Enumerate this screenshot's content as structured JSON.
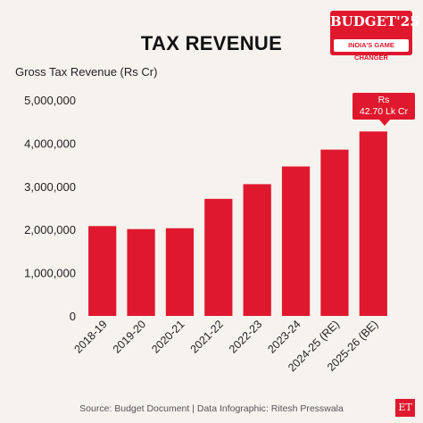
{
  "title": "TAX REVENUE",
  "logo": {
    "word": "BUDGET'25",
    "tagline": "INDIA'S GAME CHANGER"
  },
  "footer": {
    "source": "Source: Budget Document | Data Infographic: Ritesh Presswala",
    "badge": "ET"
  },
  "callout": {
    "line1": "Rs",
    "line2": "42.70 Lk Cr"
  },
  "colors": {
    "bar": "#e0182d",
    "background": "#f6f2ee"
  },
  "chart_data": {
    "type": "bar",
    "title": "TAX REVENUE",
    "xlabel": "",
    "ylabel": "Gross Tax Revenue (Rs Cr)",
    "categories": [
      "2018-19",
      "2019-20",
      "2020-21",
      "2021-22",
      "2022-23",
      "2023-24",
      "2024-25 (RE)",
      "2025-26 (BE)"
    ],
    "values": [
      2080000,
      2010000,
      2030000,
      2710000,
      3050000,
      3460000,
      3850000,
      4270000
    ],
    "ylim": [
      0,
      5000000
    ],
    "yticks": [
      "0",
      "1,000,000",
      "2,000,000",
      "3,000,000",
      "4,000,000",
      "5,000,000"
    ],
    "grid": false,
    "legend": "none"
  }
}
